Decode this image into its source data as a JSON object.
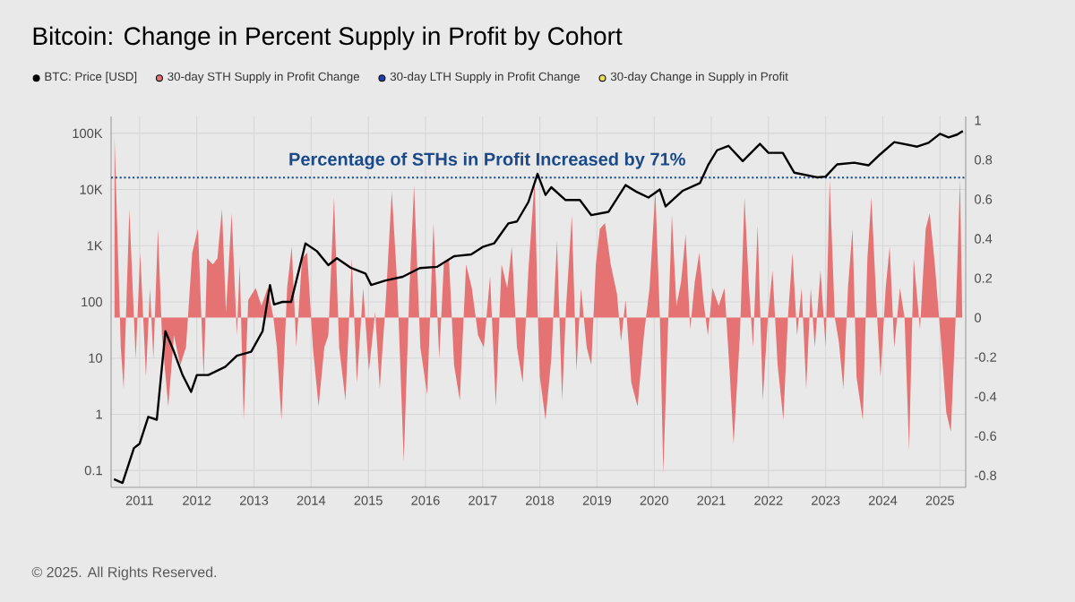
{
  "chart_data": {
    "type": "line",
    "title": "Bitcoin: Change in Percent Supply in Profit by Cohort",
    "series": [
      {
        "name": "BTC: Price [USD]",
        "color": "#000000",
        "x": [
          2010.55,
          2010.7,
          2010.9,
          2011.0,
          2011.15,
          2011.3,
          2011.45,
          2011.6,
          2011.75,
          2011.9,
          2012.0,
          2012.2,
          2012.5,
          2012.7,
          2012.95,
          2013.15,
          2013.28,
          2013.35,
          2013.5,
          2013.65,
          2013.9,
          2014.1,
          2014.3,
          2014.45,
          2014.7,
          2014.95,
          2015.05,
          2015.3,
          2015.6,
          2015.9,
          2016.2,
          2016.5,
          2016.8,
          2017.0,
          2017.2,
          2017.45,
          2017.6,
          2017.8,
          2017.96,
          2018.1,
          2018.2,
          2018.45,
          2018.7,
          2018.9,
          2019.2,
          2019.5,
          2019.7,
          2019.9,
          2020.1,
          2020.2,
          2020.5,
          2020.8,
          2020.95,
          2021.1,
          2021.3,
          2021.55,
          2021.85,
          2022.0,
          2022.25,
          2022.45,
          2022.85,
          2023.0,
          2023.2,
          2023.5,
          2023.75,
          2023.95,
          2024.2,
          2024.6,
          2024.8,
          2025.0,
          2025.15,
          2025.3,
          2025.4
        ],
        "values": [
          0.07,
          0.06,
          0.25,
          0.3,
          0.9,
          0.8,
          30,
          13,
          5,
          2.5,
          5,
          5,
          7,
          11,
          13,
          30,
          200,
          90,
          100,
          100,
          1100,
          800,
          450,
          600,
          400,
          320,
          200,
          240,
          280,
          400,
          420,
          650,
          700,
          950,
          1100,
          2500,
          2700,
          6000,
          19000,
          8000,
          11000,
          6500,
          6500,
          3500,
          4000,
          12000,
          9000,
          7200,
          10000,
          5000,
          9500,
          13000,
          28000,
          50000,
          60000,
          32000,
          65000,
          45000,
          45000,
          20000,
          16500,
          17000,
          28000,
          30000,
          27000,
          42000,
          70000,
          58000,
          68000,
          98000,
          85000,
          95000,
          110000
        ]
      },
      {
        "name": "30-day STH Supply in Profit Change",
        "color": "#e57373",
        "type": "area",
        "axis": "y2",
        "x": [
          2010.56,
          2010.67,
          2010.72,
          2010.82,
          2010.93,
          2011.01,
          2011.11,
          2011.18,
          2011.24,
          2011.32,
          2011.39,
          2011.5,
          2011.6,
          2011.71,
          2011.81,
          2011.92,
          2012.02,
          2012.12,
          2012.18,
          2012.28,
          2012.36,
          2012.44,
          2012.51,
          2012.61,
          2012.7,
          2012.75,
          2012.82,
          2012.9,
          2013.03,
          2013.13,
          2013.24,
          2013.34,
          2013.4,
          2013.48,
          2013.58,
          2013.66,
          2013.74,
          2013.84,
          2013.93,
          2014.03,
          2014.13,
          2014.23,
          2014.3,
          2014.4,
          2014.49,
          2014.6,
          2014.71,
          2014.8,
          2014.91,
          2015.01,
          2015.12,
          2015.2,
          2015.3,
          2015.41,
          2015.51,
          2015.62,
          2015.72,
          2015.8,
          2015.91,
          2016.03,
          2016.14,
          2016.24,
          2016.32,
          2016.41,
          2016.5,
          2016.6,
          2016.71,
          2016.81,
          2016.92,
          2017.02,
          2017.13,
          2017.23,
          2017.33,
          2017.43,
          2017.51,
          2017.6,
          2017.7,
          2017.8,
          2017.91,
          2017.96,
          2018.0,
          2018.1,
          2018.2,
          2018.3,
          2018.39,
          2018.46,
          2018.56,
          2018.64,
          2018.72,
          2018.82,
          2018.9,
          2018.98,
          2019.05,
          2019.14,
          2019.24,
          2019.35,
          2019.42,
          2019.5,
          2019.6,
          2019.71,
          2019.82,
          2019.92,
          2020.02,
          2020.1,
          2020.16,
          2020.23,
          2020.31,
          2020.39,
          2020.47,
          2020.55,
          2020.63,
          2020.71,
          2020.79,
          2020.86,
          2020.94,
          2021.02,
          2021.13,
          2021.23,
          2021.32,
          2021.39,
          2021.5,
          2021.58,
          2021.66,
          2021.73,
          2021.81,
          2021.9,
          2021.99,
          2022.07,
          2022.16,
          2022.26,
          2022.34,
          2022.42,
          2022.5,
          2022.58,
          2022.66,
          2022.74,
          2022.81,
          2022.91,
          2023.0,
          2023.07,
          2023.16,
          2023.23,
          2023.31,
          2023.39,
          2023.47,
          2023.54,
          2023.65,
          2023.73,
          2023.8,
          2023.89,
          2023.96,
          2024.05,
          2024.12,
          2024.2,
          2024.3,
          2024.38,
          2024.46,
          2024.54,
          2024.65,
          2024.75,
          2024.82,
          2024.91,
          2025.01,
          2025.11,
          2025.19,
          2025.27,
          2025.35,
          2025.39
        ],
        "values": [
          0.92,
          -0.15,
          -0.36,
          0.55,
          -0.21,
          0.33,
          -0.3,
          0.15,
          -0.21,
          0.45,
          -0.09,
          -0.45,
          -0.09,
          -0.24,
          -0.15,
          0.33,
          0.45,
          -0.3,
          0.3,
          0.27,
          0.3,
          0.55,
          0.03,
          0.53,
          -0.09,
          0.27,
          -0.52,
          0.09,
          0.15,
          0.06,
          0.15,
          0,
          -0.15,
          -0.52,
          0.15,
          0.36,
          -0.15,
          0.3,
          0.33,
          -0.15,
          -0.45,
          -0.15,
          -0.09,
          0.61,
          -0.15,
          -0.42,
          0.3,
          -0.33,
          0.15,
          -0.27,
          0.03,
          -0.36,
          0.06,
          0.64,
          0.15,
          -0.73,
          0.15,
          0.67,
          -0.15,
          -0.39,
          0.48,
          -0.21,
          0.27,
          0.3,
          -0.24,
          -0.42,
          0.27,
          0.15,
          -0.09,
          -0.15,
          0.21,
          -0.45,
          0.27,
          0.15,
          0.36,
          -0.15,
          -0.33,
          0.24,
          0.7,
          0.06,
          -0.3,
          -0.52,
          -0.21,
          0.39,
          -0.42,
          0.06,
          0.52,
          -0.27,
          0.15,
          -0.15,
          -0.24,
          0.27,
          0.45,
          0.48,
          0.27,
          0.12,
          -0.12,
          0.09,
          -0.33,
          -0.45,
          -0.09,
          0.15,
          0.64,
          0,
          -0.79,
          -0.15,
          0.52,
          0.06,
          0.18,
          0.42,
          -0.06,
          0.18,
          0.33,
          0.09,
          -0.09,
          0.15,
          0.06,
          0.15,
          -0.27,
          -0.64,
          -0.09,
          0.61,
          0.15,
          -0.15,
          0.47,
          -0.42,
          0,
          0.24,
          -0.24,
          -0.52,
          0,
          0.33,
          -0.09,
          0.15,
          -0.36,
          0.15,
          -0.15,
          0.24,
          -0.15,
          0.7,
          0,
          -0.12,
          -0.36,
          0.15,
          0.45,
          -0.3,
          -0.52,
          0.3,
          0.61,
          0.06,
          -0.3,
          0.15,
          0.36,
          -0.15,
          0.15,
          0,
          -0.67,
          0.3,
          -0.06,
          0.45,
          0.53,
          0.27,
          -0.09,
          -0.48,
          -0.58,
          -0.03,
          0.7,
          0
        ]
      },
      {
        "name": "30-day LTH Supply in Profit Change",
        "color": "#1f3fa8",
        "type": "line",
        "axis": "y2"
      },
      {
        "name": "30-day Change in Supply in Profit",
        "color": "#e8e25a",
        "type": "line",
        "axis": "y2"
      }
    ],
    "xlim": [
      2010.5,
      2025.45
    ],
    "xticks": [
      2011,
      2012,
      2013,
      2014,
      2015,
      2016,
      2017,
      2018,
      2019,
      2020,
      2021,
      2022,
      2023,
      2024,
      2025
    ],
    "ylim": [
      0.05,
      200000
    ],
    "yticks": [
      0.1,
      1,
      10,
      100,
      {
        "value": 1000,
        "label": "1K"
      },
      {
        "value": 10000,
        "label": "10K"
      },
      {
        "value": 100000,
        "label": "100K"
      }
    ],
    "y2lim": [
      -0.86,
      1.02
    ],
    "y2ticks": [
      -0.8,
      -0.6,
      -0.4,
      -0.2,
      0,
      0.2,
      0.4,
      0.6,
      0.8,
      1
    ],
    "log": "y",
    "grid": true,
    "legend": "top left",
    "ref_lines": [
      {
        "axis": "y2",
        "value": 0.71,
        "label": "Percentage of STHs in Profit Increased by 71%",
        "color": "#1a4a8a",
        "line_style": "dotted"
      }
    ],
    "annotations": [
      "© 2025. All Rights Reserved."
    ]
  }
}
